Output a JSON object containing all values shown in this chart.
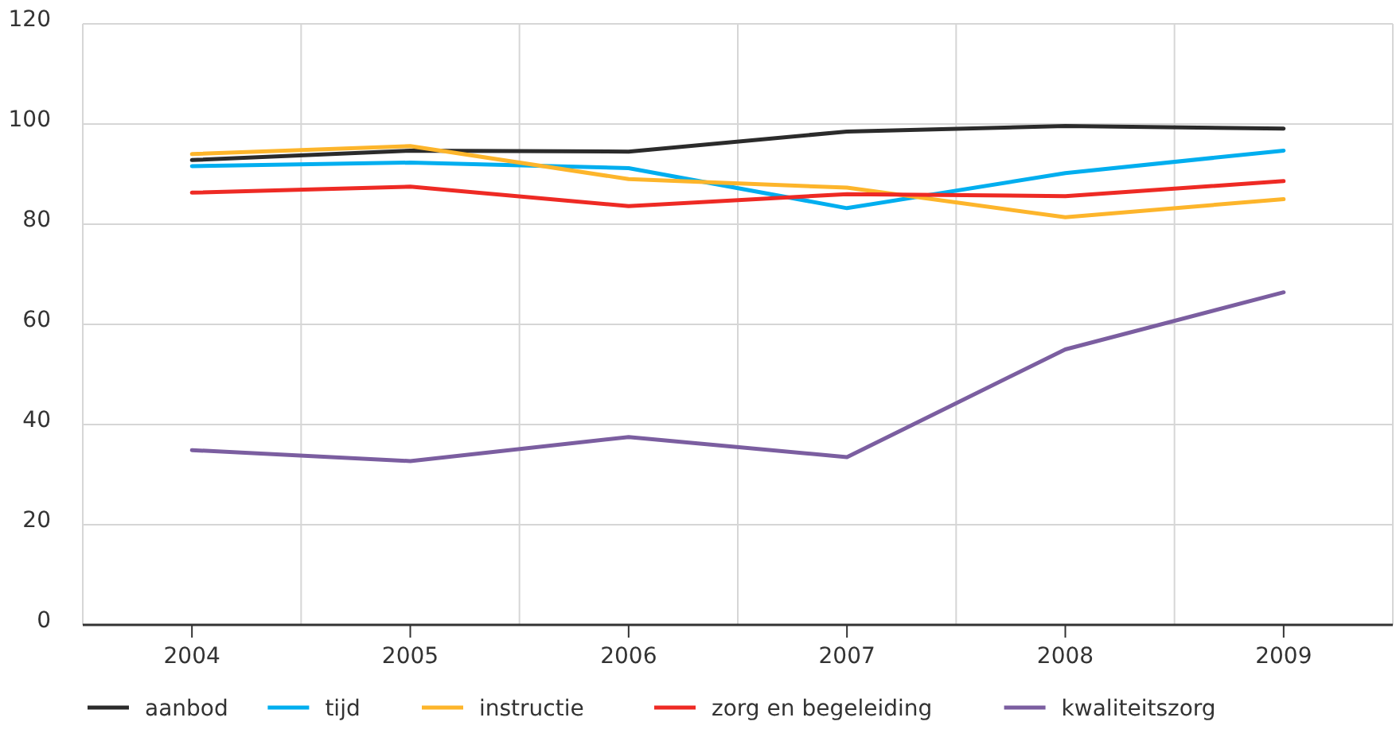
{
  "chart_data": {
    "type": "line",
    "categories": [
      "2004",
      "2005",
      "2006",
      "2007",
      "2008",
      "2009"
    ],
    "series": [
      {
        "name": "aanbod",
        "color": "#2b2b2b",
        "values": [
          92.8,
          94.7,
          94.5,
          98.5,
          99.6,
          99.1
        ]
      },
      {
        "name": "tijd",
        "color": "#00aeef",
        "values": [
          91.6,
          92.3,
          91.2,
          83.2,
          90.2,
          94.7
        ]
      },
      {
        "name": "instructie",
        "color": "#fdb52b",
        "values": [
          94.0,
          95.6,
          89.0,
          87.3,
          81.4,
          85.0
        ]
      },
      {
        "name": "zorg en begeleiding",
        "color": "#ee2a24",
        "values": [
          86.3,
          87.5,
          83.6,
          86.0,
          85.6,
          88.6
        ]
      },
      {
        "name": "kwaliteitszorg",
        "color": "#7b5ea0",
        "values": [
          34.9,
          32.7,
          37.5,
          33.5,
          55.0,
          66.4
        ]
      }
    ],
    "ylim": [
      0,
      120
    ],
    "yticks": [
      0,
      20,
      40,
      60,
      80,
      100,
      120
    ],
    "grid": true,
    "legend": "bottom",
    "marker": "none",
    "line_style": "solid"
  }
}
